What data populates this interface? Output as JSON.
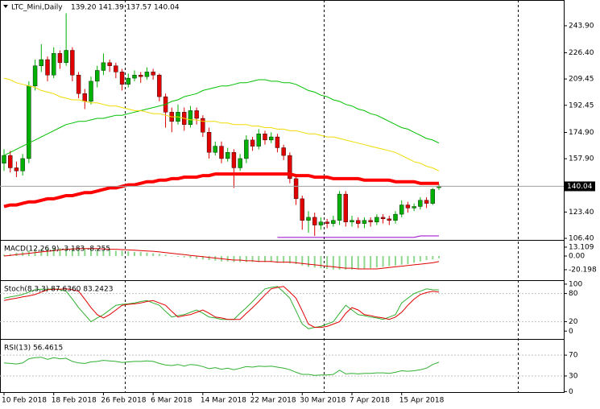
{
  "chart_data": [
    {
      "type": "candlestick",
      "title": "LTC_Mini,Daily",
      "quote": "139.20 141.39 137.57 140.04",
      "categories": [
        "10 Feb 2018",
        null,
        null,
        null,
        null,
        null,
        null,
        null,
        "18 Feb 2018",
        null,
        null,
        null,
        null,
        null,
        null,
        null,
        "26 Feb 2018",
        null,
        null,
        null,
        null,
        null,
        null,
        null,
        "6 Mar 2018",
        null,
        null,
        null,
        null,
        null,
        null,
        null,
        "14 Mar 2018",
        null,
        null,
        null,
        null,
        null,
        null,
        null,
        "22 Mar 2018",
        null,
        null,
        null,
        null,
        null,
        null,
        null,
        "30 Mar 2018",
        null,
        null,
        null,
        null,
        null,
        null,
        null,
        "7 Apr 2018",
        null,
        null,
        null,
        null,
        null,
        null,
        null,
        "15 Apr 2018",
        null,
        null,
        null,
        null,
        null,
        null
      ],
      "open": [
        155,
        160,
        152,
        150,
        158,
        205,
        218,
        222,
        212,
        226,
        220,
        228,
        212,
        200,
        195,
        208,
        215,
        220,
        218,
        214,
        206,
        210,
        212,
        211,
        214,
        212,
        198,
        188,
        182,
        188,
        180,
        189,
        184,
        175,
        162,
        166,
        158,
        162,
        152,
        158,
        170,
        166,
        174,
        170,
        172,
        165,
        160,
        145,
        132,
        118,
        120,
        115,
        117,
        116,
        118,
        135,
        117,
        118,
        116,
        118,
        117,
        120,
        119,
        118,
        122,
        128,
        126,
        127,
        131,
        129,
        139.2
      ],
      "high": [
        164,
        163,
        156,
        161,
        208,
        222,
        232,
        224,
        230,
        228,
        252,
        230,
        214,
        203,
        211,
        218,
        226,
        222,
        220,
        216,
        213,
        215,
        214,
        217,
        216,
        213,
        200,
        191,
        193,
        191,
        192,
        191,
        186,
        178,
        169,
        169,
        165,
        164,
        161,
        173,
        172,
        177,
        176,
        175,
        174,
        167,
        162,
        148,
        134,
        124,
        123,
        120,
        119,
        121,
        137,
        137,
        121,
        120,
        120,
        120,
        122,
        122,
        121,
        124,
        131,
        130,
        129,
        133,
        133,
        139,
        141.39
      ],
      "low": [
        150,
        149,
        146,
        147,
        155,
        202,
        214,
        208,
        210,
        216,
        218,
        208,
        197,
        190,
        193,
        204,
        212,
        214,
        210,
        202,
        204,
        208,
        207,
        209,
        209,
        195,
        178,
        175,
        180,
        176,
        178,
        180,
        172,
        158,
        160,
        155,
        156,
        139,
        150,
        155,
        163,
        164,
        167,
        168,
        162,
        157,
        142,
        128,
        112,
        110,
        108,
        112,
        113,
        114,
        115,
        114,
        114,
        113,
        113,
        114,
        115,
        116,
        115,
        116,
        120,
        123,
        124,
        125,
        126,
        128,
        137.57
      ],
      "close": [
        160,
        152,
        150,
        158,
        205,
        218,
        222,
        212,
        226,
        220,
        228,
        212,
        200,
        195,
        208,
        215,
        220,
        218,
        214,
        206,
        210,
        212,
        211,
        214,
        212,
        198,
        188,
        182,
        188,
        180,
        189,
        184,
        175,
        162,
        166,
        158,
        162,
        152,
        158,
        170,
        166,
        174,
        170,
        172,
        165,
        160,
        145,
        132,
        118,
        120,
        115,
        117,
        116,
        118,
        135,
        117,
        118,
        116,
        118,
        117,
        120,
        119,
        118,
        122,
        128,
        126,
        127,
        131,
        129,
        138,
        140.04
      ],
      "up_color": "#00b000",
      "down_color": "#e00000",
      "series": [
        {
          "color": "#00c000",
          "line_width": 1,
          "values": [
            160,
            162,
            164,
            166,
            168,
            170,
            172,
            174,
            176,
            178,
            180,
            181,
            182,
            182,
            183,
            184,
            184,
            185,
            186,
            186,
            187,
            188,
            189,
            190,
            191,
            192,
            193,
            195,
            196,
            198,
            199,
            200,
            202,
            203,
            204,
            205,
            205,
            206,
            207,
            207,
            208,
            209,
            209,
            208,
            208,
            207,
            207,
            206,
            204,
            202,
            201,
            199,
            198,
            196,
            195,
            193,
            192,
            190,
            189,
            187,
            186,
            184,
            182,
            180,
            178,
            177,
            175,
            173,
            171,
            170,
            168
          ]
        },
        {
          "color": "#f0dc00",
          "line_width": 1,
          "values": [
            210,
            209,
            207,
            206,
            205,
            204,
            202,
            201,
            200,
            198,
            197,
            196,
            196,
            195,
            194,
            194,
            193,
            192,
            192,
            191,
            190,
            189,
            189,
            188,
            187,
            187,
            186,
            185,
            185,
            184,
            183,
            183,
            182,
            182,
            182,
            181,
            181,
            180,
            180,
            180,
            179,
            179,
            178,
            178,
            177,
            177,
            176,
            176,
            175,
            174,
            174,
            173,
            172,
            172,
            171,
            170,
            169,
            168,
            167,
            166,
            165,
            164,
            163,
            162,
            160,
            158,
            156,
            155,
            153,
            152,
            150
          ]
        },
        {
          "color": "#ff0000",
          "line_width": 4,
          "values": [
            127,
            128,
            128,
            129,
            130,
            130,
            131,
            132,
            132,
            133,
            134,
            134,
            135,
            136,
            136,
            137,
            138,
            139,
            139,
            140,
            141,
            141,
            142,
            143,
            143,
            144,
            144,
            145,
            145,
            146,
            146,
            146,
            147,
            147,
            148,
            148,
            148,
            148,
            148,
            148,
            148,
            148,
            148,
            148,
            148,
            148,
            148,
            147,
            147,
            147,
            146,
            146,
            146,
            145,
            145,
            145,
            145,
            145,
            144,
            144,
            144,
            144,
            144,
            143,
            143,
            143,
            143,
            142,
            142,
            142,
            142
          ]
        },
        {
          "color": "#9900cc",
          "line_width": 1,
          "values": [
            null,
            null,
            null,
            null,
            null,
            null,
            null,
            null,
            null,
            null,
            null,
            null,
            null,
            null,
            null,
            null,
            null,
            null,
            null,
            null,
            null,
            null,
            null,
            null,
            null,
            null,
            null,
            null,
            null,
            null,
            null,
            null,
            null,
            null,
            null,
            null,
            null,
            null,
            null,
            null,
            null,
            null,
            null,
            null,
            107,
            107,
            107,
            107,
            107,
            107,
            107,
            107,
            107,
            107,
            107,
            107,
            107,
            107,
            107,
            107,
            107,
            107,
            107,
            107,
            107,
            107,
            107,
            108,
            108,
            108,
            108
          ]
        }
      ],
      "ylim": [
        105.9,
        259.5
      ],
      "yticks": [
        {
          "value": 243.9,
          "label": "243.90"
        },
        {
          "value": 226.4,
          "label": "226.40"
        },
        209.45,
        192.45,
        {
          "value": 174.9,
          "label": "174.90"
        },
        {
          "value": 157.9,
          "label": "157.90"
        },
        {
          "value": 123.4,
          "label": "123.40"
        },
        {
          "value": 106.4,
          "label": "106.40"
        }
      ]
    },
    {
      "type": "bar",
      "title": "MACD(12,26,9) -3.183 -8.255",
      "series": [
        {
          "type": "bar",
          "color": "#8ed88e",
          "values": [
            2,
            3,
            5,
            6,
            8,
            9,
            10,
            11,
            12,
            12,
            12,
            12,
            11,
            11,
            10,
            10,
            9,
            9,
            8,
            8,
            7,
            6,
            6,
            5,
            4,
            3,
            2,
            0,
            -1,
            -2,
            -3,
            -4,
            -5,
            -6,
            -7,
            -8,
            -8,
            -9,
            -9,
            -9,
            -9,
            -9,
            -9,
            -9,
            -10,
            -10,
            -11,
            -12,
            -14,
            -16,
            -17,
            -18,
            -19,
            -20,
            -20,
            -20,
            -20,
            -19,
            -19,
            -18,
            -17,
            -16,
            -15,
            -14,
            -13,
            -12,
            -10,
            -8,
            -6,
            -5,
            -3.183
          ]
        },
        {
          "type": "line",
          "color": "#e00000",
          "values": [
            0,
            1,
            2,
            3,
            4,
            5,
            6,
            7,
            8,
            9,
            10,
            10.5,
            11,
            11,
            11,
            11,
            10.5,
            10,
            10,
            9.5,
            9,
            8.5,
            8,
            7.5,
            7,
            6,
            5,
            4,
            3,
            2,
            1,
            0,
            -1,
            -2,
            -3,
            -4,
            -5,
            -6,
            -6,
            -7,
            -7,
            -8,
            -8,
            -8,
            -9,
            -9,
            -9,
            -10,
            -11,
            -12,
            -13,
            -14,
            -15,
            -16,
            -17,
            -18,
            -18,
            -19,
            -19,
            -19,
            -19,
            -18,
            -17,
            -16,
            -15,
            -14,
            -13,
            -12,
            -11,
            -10,
            -8.255
          ]
        }
      ],
      "ylim": [
        -34.5,
        21.4
      ],
      "yticks": [
        13.109,
        {
          "value": 0,
          "label": "0.00"
        },
        -20.198
      ]
    },
    {
      "type": "line",
      "title": "Stoch(8,3,3) 87.6360 83.2423",
      "series": [
        {
          "color": "#30b030",
          "values": [
            70,
            73,
            75,
            78,
            83,
            88,
            89,
            89,
            90,
            88,
            85,
            68,
            50,
            35,
            20,
            28,
            35,
            45,
            55,
            57,
            58,
            60,
            63,
            65,
            60,
            55,
            42,
            30,
            33,
            35,
            40,
            45,
            38,
            30,
            28,
            25,
            25,
            25,
            38,
            50,
            63,
            77,
            90,
            93,
            95,
            83,
            70,
            43,
            15,
            5,
            8,
            10,
            15,
            20,
            38,
            55,
            45,
            35,
            33,
            30,
            28,
            25,
            30,
            35,
            60,
            70,
            80,
            85,
            90,
            88,
            87.636
          ]
        },
        {
          "color": "#e00000",
          "values": [
            65,
            68,
            70,
            73,
            75,
            78,
            83,
            88,
            89,
            89,
            90,
            88,
            85,
            68,
            50,
            35,
            28,
            35,
            45,
            55,
            57,
            58,
            60,
            63,
            65,
            60,
            55,
            42,
            30,
            33,
            35,
            40,
            45,
            38,
            30,
            28,
            25,
            25,
            25,
            38,
            50,
            63,
            77,
            90,
            93,
            95,
            83,
            70,
            43,
            15,
            8,
            8,
            10,
            15,
            20,
            38,
            50,
            45,
            35,
            33,
            30,
            28,
            25,
            30,
            40,
            55,
            68,
            78,
            82,
            85,
            83.2423
          ]
        }
      ],
      "levels": [
        80,
        20
      ],
      "ylim": [
        -15,
        105
      ],
      "yticks": [
        100,
        80,
        20,
        0
      ]
    },
    {
      "type": "line",
      "title": "RSI(13) 56.4615",
      "series": [
        {
          "color": "#30b030",
          "values": [
            55,
            54,
            53,
            55,
            63,
            65,
            66,
            62,
            65,
            63,
            64,
            58,
            55,
            54,
            57,
            58,
            60,
            59,
            58,
            56,
            57,
            58,
            58,
            59,
            58,
            54,
            51,
            50,
            52,
            49,
            52,
            51,
            48,
            44,
            46,
            43,
            45,
            42,
            45,
            48,
            47,
            49,
            48,
            49,
            47,
            45,
            42,
            37,
            33,
            33,
            31,
            32,
            32,
            33,
            41,
            34,
            35,
            34,
            35,
            35,
            36,
            36,
            35,
            37,
            40,
            39,
            40,
            42,
            45,
            52,
            56.4615
          ]
        }
      ],
      "levels": [
        70,
        30
      ],
      "ylim": [
        -1,
        98
      ],
      "yticks": [
        70,
        30,
        0
      ]
    }
  ]
}
